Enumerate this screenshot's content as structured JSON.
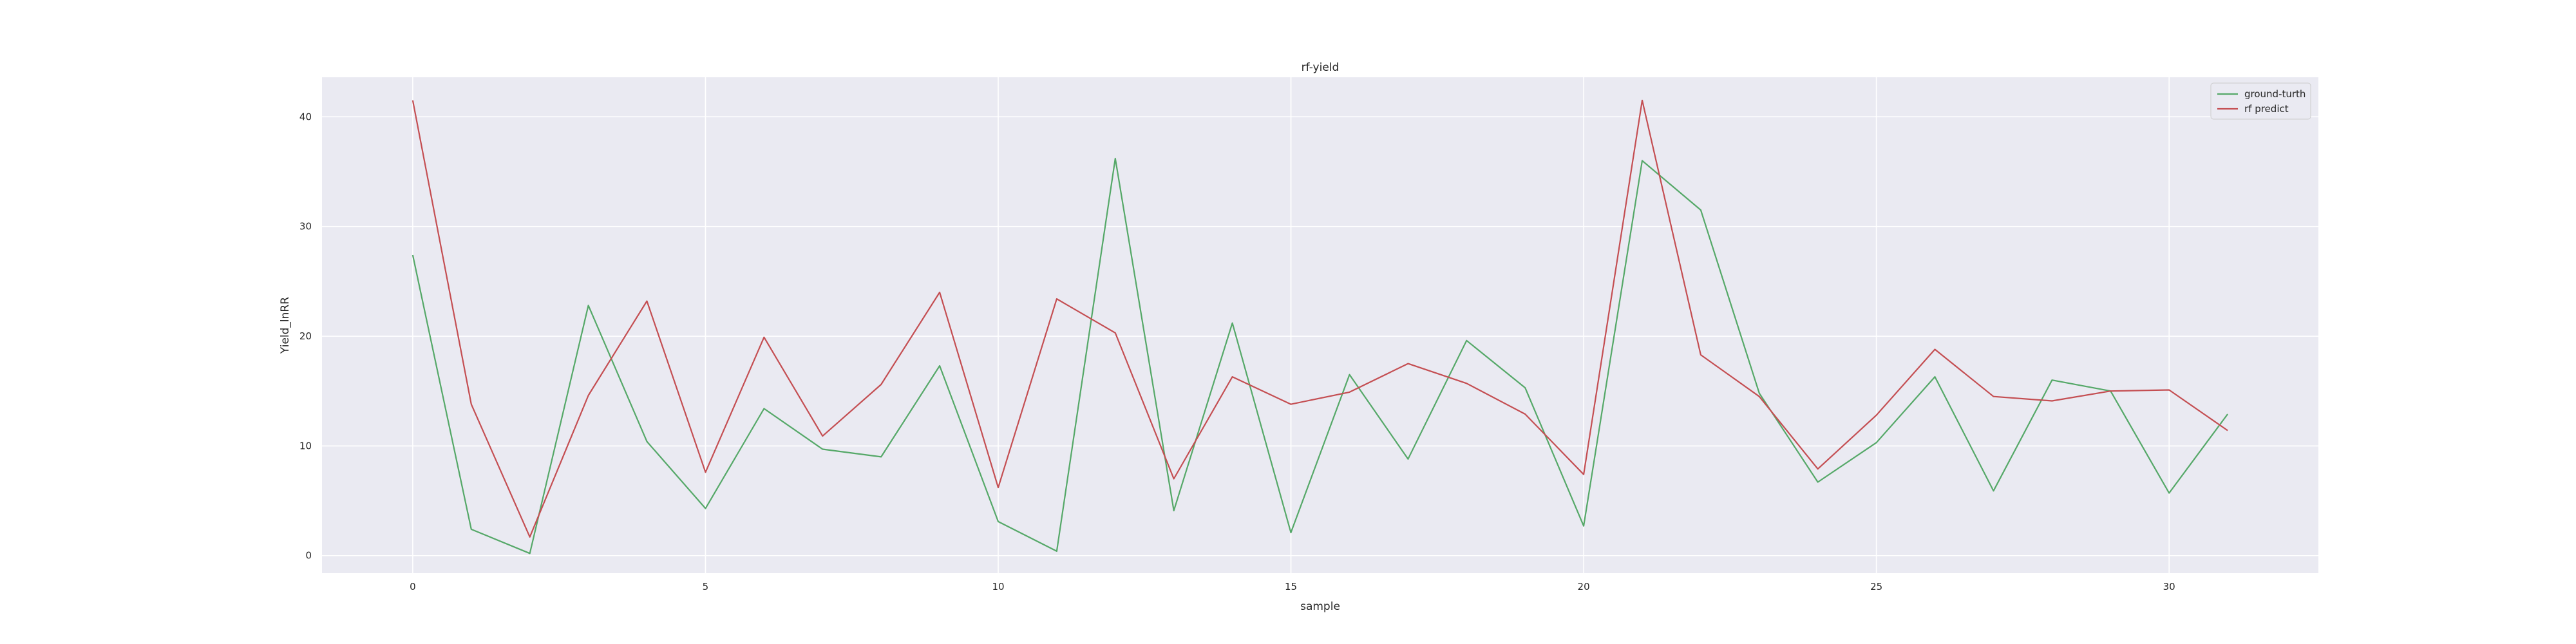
{
  "chart_data": {
    "type": "line",
    "title": "rf-yield",
    "xlabel": "sample",
    "ylabel": "Yield_lnRR",
    "xlim": [
      -1.55,
      32.55
    ],
    "ylim": [
      -1.6,
      43.6
    ],
    "xticks": [
      0,
      5,
      10,
      15,
      20,
      25,
      30
    ],
    "yticks": [
      0,
      10,
      20,
      30,
      40
    ],
    "grid": true,
    "legend_position": "top-right",
    "x": [
      0,
      1,
      2,
      3,
      4,
      5,
      6,
      7,
      8,
      9,
      10,
      11,
      12,
      13,
      14,
      15,
      16,
      17,
      18,
      19,
      20,
      21,
      22,
      23,
      24,
      25,
      26,
      27,
      28,
      29,
      30,
      31
    ],
    "series": [
      {
        "name": "ground-turth",
        "color": "#55a868",
        "values": [
          27.4,
          2.4,
          0.2,
          22.8,
          10.4,
          4.3,
          13.4,
          9.7,
          9.0,
          17.3,
          3.1,
          0.4,
          36.2,
          4.1,
          21.2,
          2.1,
          16.5,
          8.8,
          19.6,
          15.3,
          2.7,
          36.0,
          31.5,
          14.8,
          6.7,
          10.3,
          16.3,
          5.9,
          16.0,
          15.0,
          5.7,
          12.9
        ]
      },
      {
        "name": "rf predict",
        "color": "#c44e52",
        "values": [
          41.5,
          13.8,
          1.7,
          14.6,
          23.2,
          7.6,
          19.9,
          10.9,
          15.6,
          24.0,
          6.2,
          23.4,
          20.3,
          7.0,
          16.3,
          13.8,
          14.9,
          17.5,
          15.7,
          12.9,
          7.4,
          41.5,
          18.3,
          14.5,
          7.9,
          12.8,
          18.8,
          14.5,
          14.1,
          15.0,
          15.1,
          11.4
        ]
      }
    ]
  }
}
